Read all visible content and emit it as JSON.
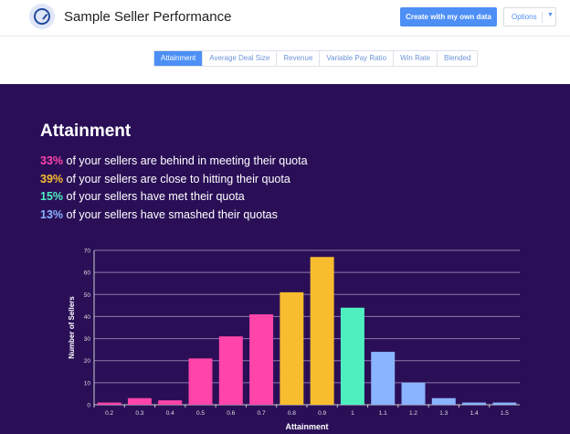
{
  "header": {
    "title": "Sample Seller Performance",
    "logo_icon": "speedometer-icon",
    "create_label": "Create with my own data",
    "options_label": "Options"
  },
  "tabs": [
    {
      "label": "Attainment",
      "active": true
    },
    {
      "label": "Average Deal Size"
    },
    {
      "label": "Revenue"
    },
    {
      "label": "Variable Pay Ratio"
    },
    {
      "label": "Win Rate"
    },
    {
      "label": "Blended"
    }
  ],
  "main": {
    "heading": "Attainment",
    "stats": [
      {
        "pct": "33%",
        "text": " of your sellers are behind in meeting their quota",
        "color": "#ff44aa"
      },
      {
        "pct": "39%",
        "text": " of your sellers are close to hitting their quota",
        "color": "#f7bd2e"
      },
      {
        "pct": "15%",
        "text": " of your sellers have met their quota",
        "color": "#4ff0c0"
      },
      {
        "pct": "13%",
        "text": " of your sellers have smashed their quotas",
        "color": "#8ab4ff"
      }
    ]
  },
  "chart_data": {
    "type": "bar",
    "xlabel": "Attainment",
    "ylabel": "Number of Sellers",
    "categories": [
      "0.2",
      "0.3",
      "0.4",
      "0.5",
      "0.6",
      "0.7",
      "0.8",
      "0.9",
      "1",
      "1.1",
      "1.2",
      "1.3",
      "1.4",
      "1.5"
    ],
    "values": [
      1,
      3,
      2,
      21,
      31,
      41,
      51,
      67,
      44,
      24,
      10,
      3,
      1,
      1
    ],
    "colors": [
      "#ff44aa",
      "#ff44aa",
      "#ff44aa",
      "#ff44aa",
      "#ff44aa",
      "#ff44aa",
      "#f7bd2e",
      "#f7bd2e",
      "#4ff0c0",
      "#8ab4ff",
      "#8ab4ff",
      "#8ab4ff",
      "#8ab4ff",
      "#8ab4ff"
    ],
    "ylim": [
      0,
      70
    ],
    "yticks": [
      0,
      10,
      20,
      30,
      40,
      50,
      60,
      70
    ],
    "grid": true
  }
}
